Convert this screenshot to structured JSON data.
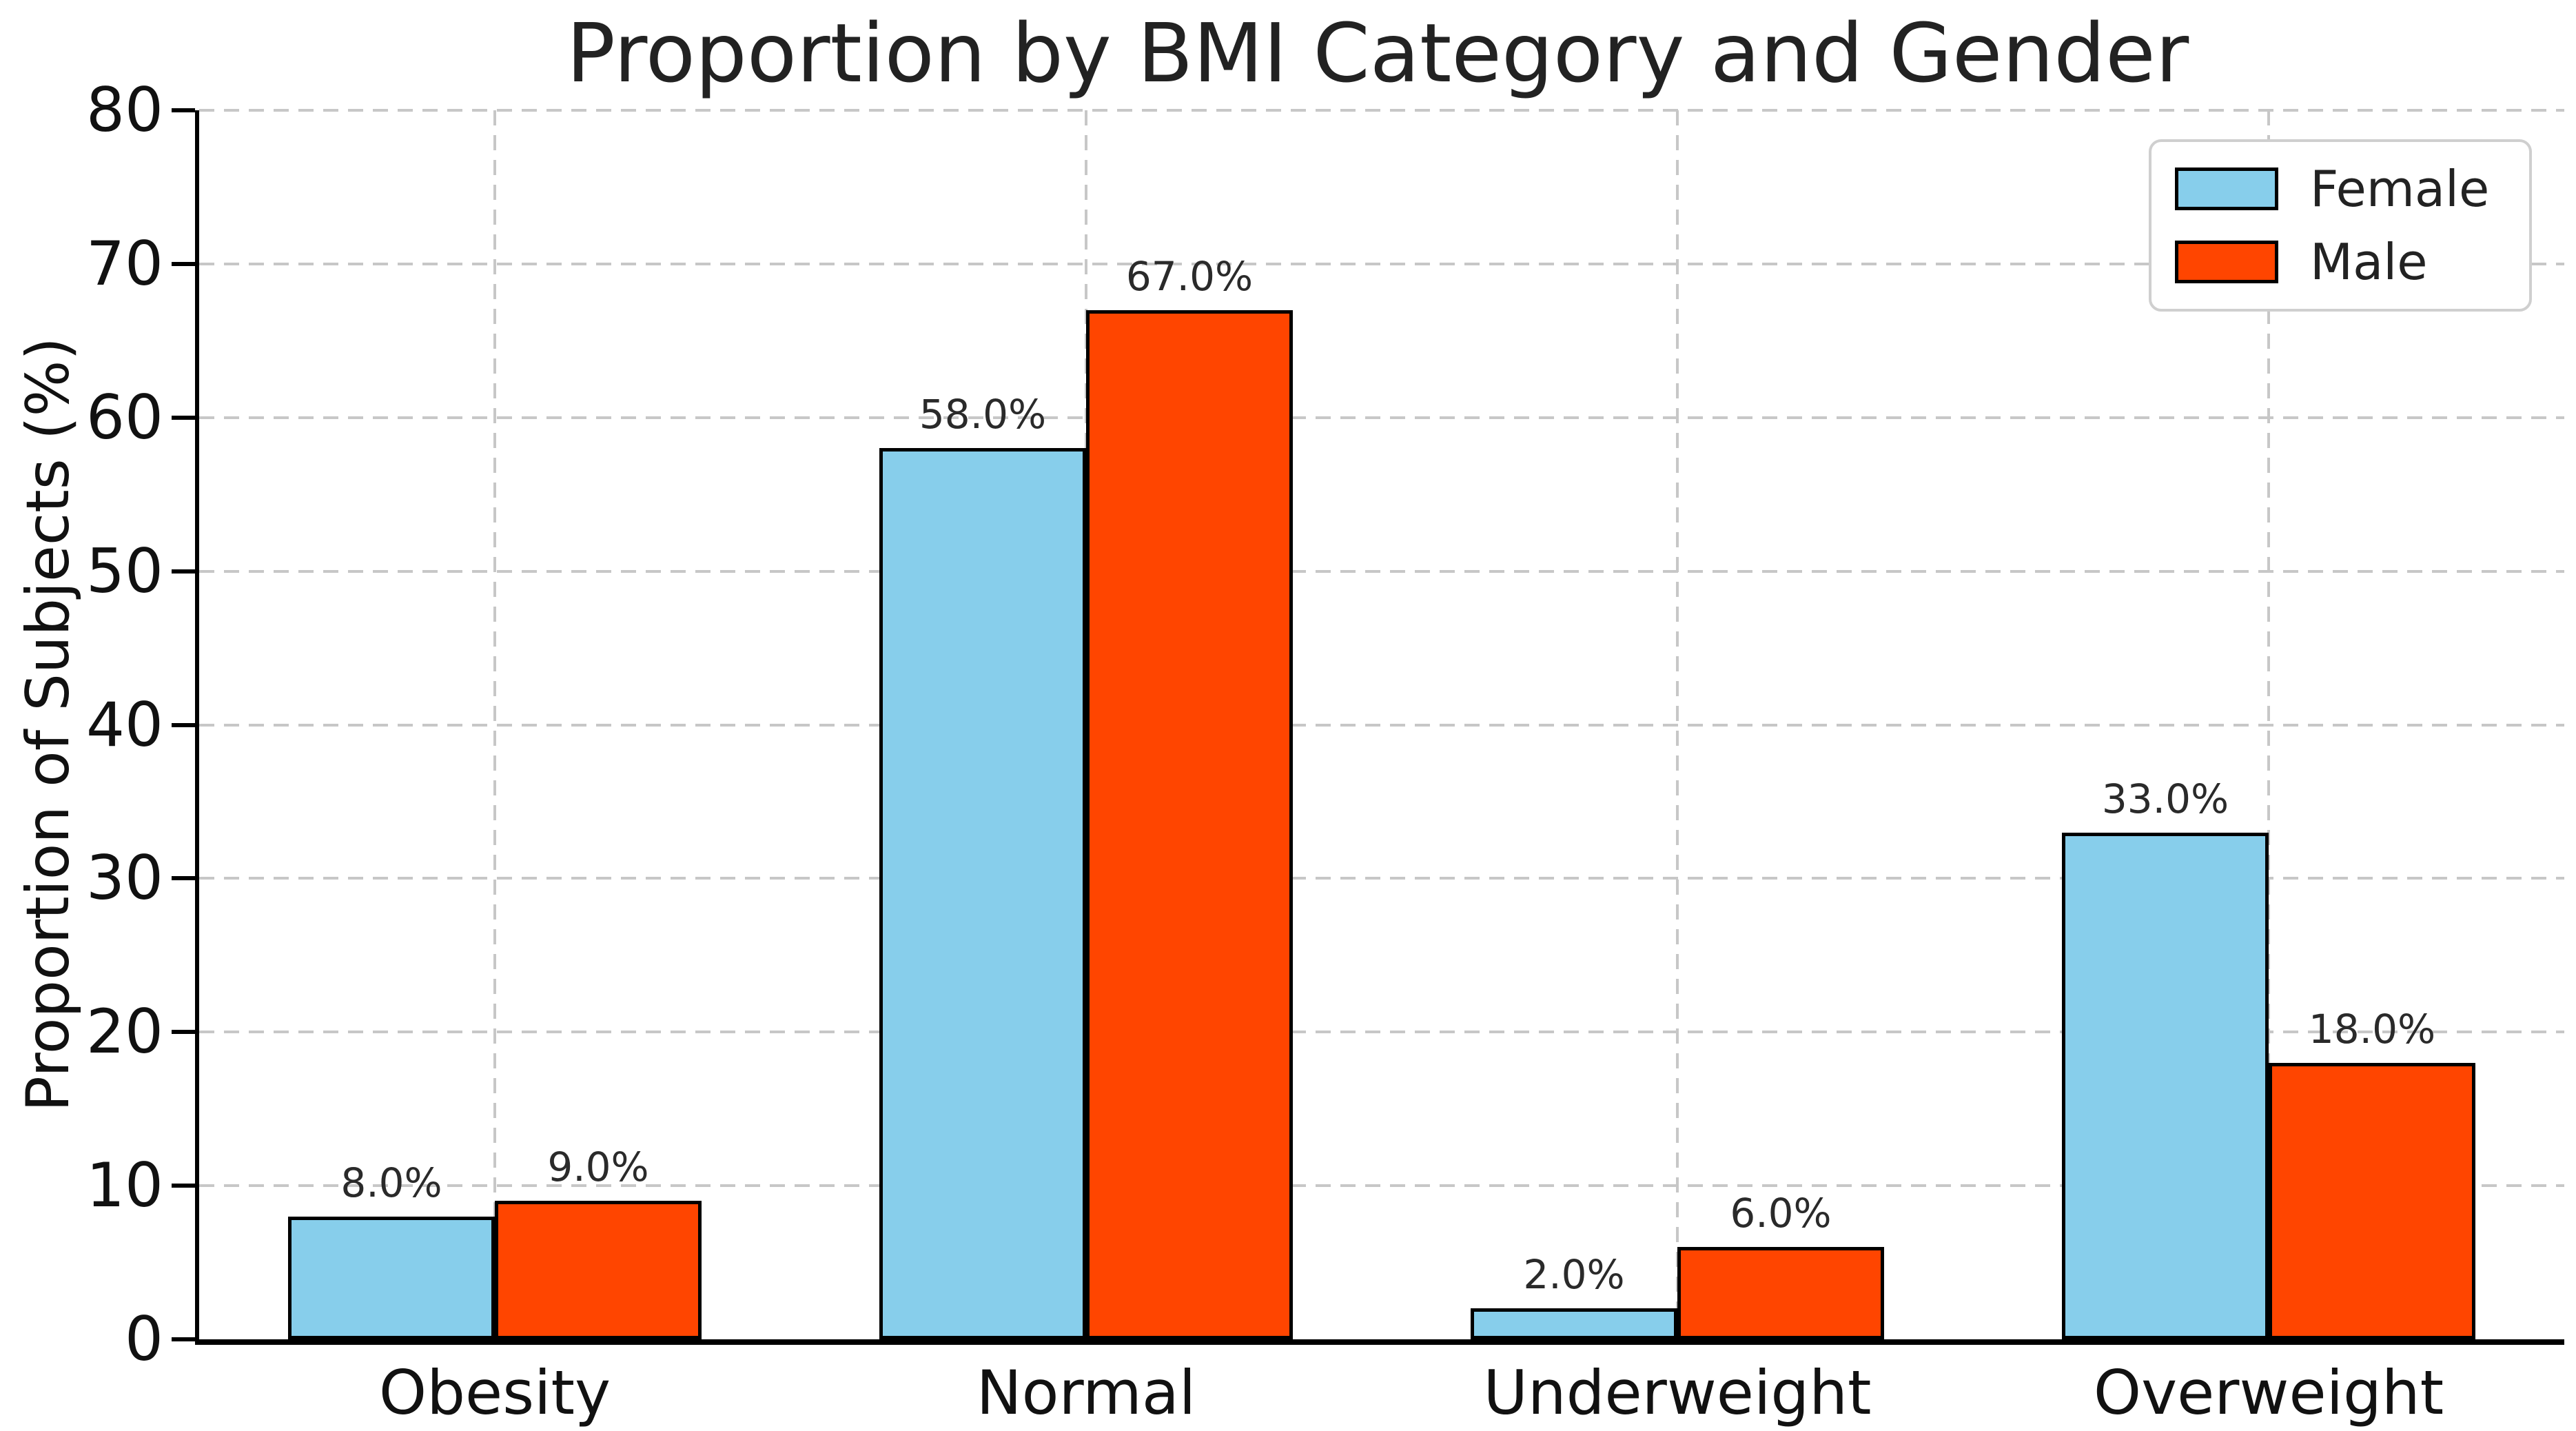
{
  "chart_data": {
    "type": "bar",
    "title": "Proportion by BMI Category and Gender",
    "xlabel": "",
    "ylabel": "Proportion of Subjects (%)",
    "categories": [
      "Obesity",
      "Normal",
      "Underweight",
      "Overweight"
    ],
    "series": [
      {
        "name": "Female",
        "color": "#87CEEB",
        "values": [
          8.0,
          58.0,
          2.0,
          33.0
        ],
        "value_labels": [
          "8.0%",
          "58.0%",
          "2.0%",
          "33.0%"
        ]
      },
      {
        "name": "Male",
        "color": "#FF4500",
        "values": [
          9.0,
          67.0,
          6.0,
          18.0
        ],
        "value_labels": [
          "9.0%",
          "67.0%",
          "6.0%",
          "18.0%"
        ]
      }
    ],
    "y_ticks": [
      0,
      10,
      20,
      30,
      40,
      50,
      60,
      70,
      80
    ],
    "y_tick_labels": [
      "0",
      "10",
      "20",
      "30",
      "40",
      "50",
      "60",
      "70",
      "80"
    ],
    "ylim": [
      0,
      80
    ],
    "grid": "dashed",
    "bar_edge_color": "#000000",
    "grid_color": "#c7c7c7",
    "legend_position": "upper right"
  }
}
